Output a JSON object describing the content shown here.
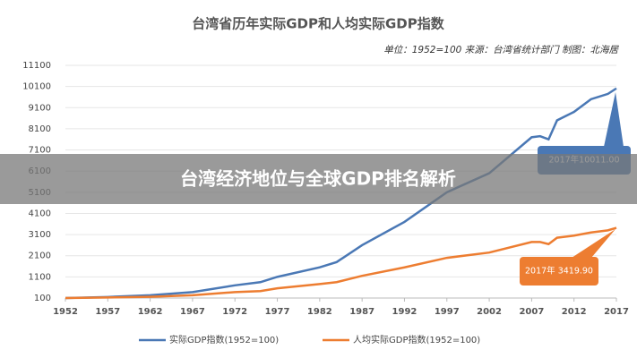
{
  "chart_data": {
    "type": "line",
    "title": "台湾省历年实际GDP和人均实际GDP指数",
    "subtitle": "单位：1952=100 来源：台湾省统计部门 制图：北海居",
    "banner": "台湾经济地位与全球GDP排名解析",
    "x": [
      1952,
      1957,
      1962,
      1967,
      1972,
      1975,
      1977,
      1982,
      1984,
      1987,
      1992,
      1997,
      2002,
      2007,
      2008,
      2009,
      2010,
      2012,
      2014,
      2016,
      2017
    ],
    "series": [
      {
        "name": "实际GDP指数(1952=100)",
        "color": "#4a78b5",
        "values": [
          100,
          150,
          230,
          380,
          700,
          850,
          1100,
          1550,
          1800,
          2600,
          3700,
          5100,
          6000,
          7700,
          7750,
          7600,
          8500,
          8900,
          9500,
          9750,
          10011
        ]
      },
      {
        "name": "人均实际GDP指数(1952=100)",
        "color": "#ed7d31",
        "values": [
          100,
          125,
          160,
          230,
          380,
          430,
          560,
          760,
          850,
          1150,
          1550,
          2000,
          2250,
          2750,
          2750,
          2650,
          2950,
          3050,
          3200,
          3300,
          3419.9
        ]
      }
    ],
    "annotations": [
      {
        "text": "2017年10011.00",
        "color": "#4a78b5"
      },
      {
        "text": "2017年 3419.90",
        "color": "#ed7d31"
      }
    ],
    "xlim": [
      1952,
      2017
    ],
    "xticks": [
      1952,
      1957,
      1962,
      1967,
      1972,
      1977,
      1982,
      1987,
      1992,
      1997,
      2002,
      2007,
      2012,
      2017
    ],
    "ylim": [
      100,
      11100
    ],
    "yticks": [
      100,
      1100,
      2100,
      3100,
      4100,
      5100,
      6100,
      7100,
      8100,
      9100,
      10100,
      11100
    ],
    "grid": true
  }
}
